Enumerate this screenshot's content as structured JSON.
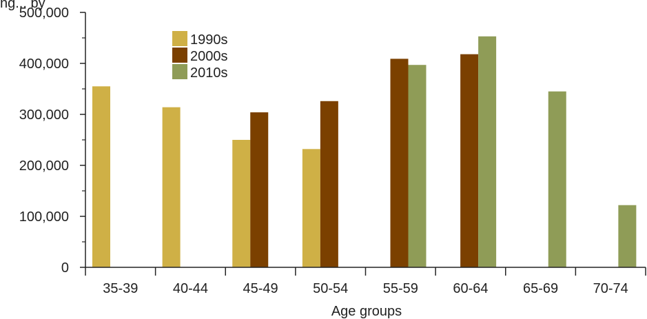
{
  "chart_data": {
    "type": "bar",
    "ylabel_partial": "ng... by",
    "xlabel": "Age groups",
    "categories": [
      "35-39",
      "40-44",
      "45-49",
      "50-54",
      "55-59",
      "60-64",
      "65-69",
      "70-74"
    ],
    "series": [
      {
        "name": "1990s",
        "color": "#cfb046",
        "values": [
          355000,
          314000,
          250000,
          232000,
          null,
          null,
          null,
          null
        ]
      },
      {
        "name": "2000s",
        "color": "#7b4000",
        "values": [
          null,
          null,
          304000,
          326000,
          409000,
          418000,
          null,
          null
        ]
      },
      {
        "name": "2010s",
        "color": "#8f9c57",
        "values": [
          null,
          null,
          null,
          null,
          397000,
          453000,
          345000,
          122000
        ]
      }
    ],
    "yticks": [
      "0",
      "100,000",
      "200,000",
      "300,000",
      "400,000",
      "500,000"
    ],
    "ylim": [
      0,
      500000
    ],
    "grid": false,
    "legend_position": "top-left inside"
  }
}
